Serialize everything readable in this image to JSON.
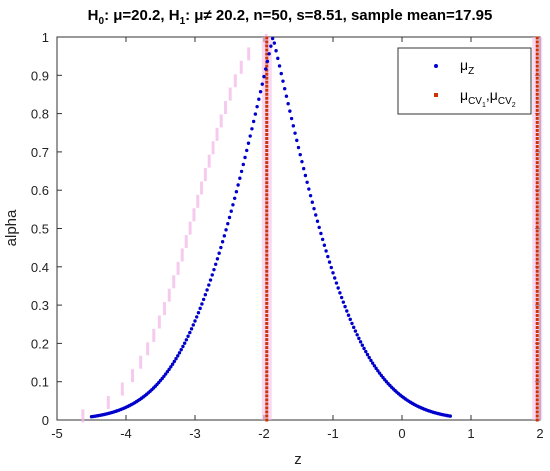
{
  "chart_data": {
    "type": "scatter",
    "title": "H₀: μ=20.2, H₁: μ≠ 20.2, n=50, s=8.51,  sample mean=17.95",
    "title_parts": {
      "h0": "H",
      "h0_sub": "0",
      "h0_rest": ": μ=20.2, ",
      "h1": "H",
      "h1_sub": "1",
      "h1_rest": ": μ≠ 20.2, n=50, s=8.51,  sample mean=17.95"
    },
    "xlabel": "z",
    "ylabel": "alpha",
    "xlim": [
      -5,
      2
    ],
    "ylim": [
      0,
      1
    ],
    "xticks": [
      -5,
      -4,
      -3,
      -2,
      -1,
      0,
      1,
      2
    ],
    "yticks": [
      0,
      0.1,
      0.2,
      0.3,
      0.4,
      0.5,
      0.6,
      0.7,
      0.8,
      0.9,
      1
    ],
    "xtick_labels": [
      "-5",
      "-4",
      "-3",
      "-2",
      "-1",
      "0",
      "1",
      "2"
    ],
    "ytick_labels": [
      "0",
      "0.1",
      "0.2",
      "0.3",
      "0.4",
      "0.5",
      "0.6",
      "0.7",
      "0.8",
      "0.9",
      "1"
    ],
    "grid": false,
    "legend_position": "top-right",
    "series": [
      {
        "name": "μZ",
        "label_main": "μ",
        "label_sub": "Z",
        "color": "#0000cc",
        "description": "two-sided p-value curve",
        "peak_z": -1.87,
        "x_min": -4.5,
        "x_max": 0.7,
        "step": 0.025
      },
      {
        "name": "μCV1,μCV2",
        "label_main": "μ",
        "label_sub": "CV",
        "label_subsub": "1",
        "label_mid": ",μ",
        "label_sub2": "CV",
        "label_subsub2": "2",
        "color": "#cc3300",
        "critical_values_z": [
          -1.96,
          1.96
        ]
      }
    ]
  }
}
